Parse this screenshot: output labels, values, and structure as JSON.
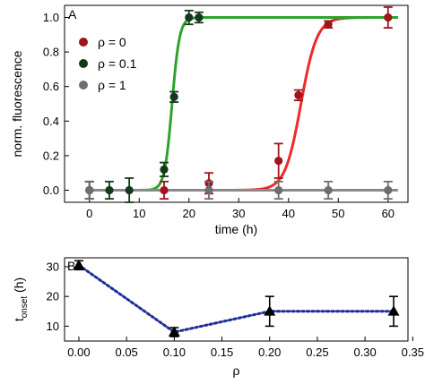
{
  "chart_data": [
    {
      "type": "scatter",
      "panel_label": "A",
      "xlabel": "time (h)",
      "ylabel": "norm. fluorescence",
      "xlim": [
        -5,
        64
      ],
      "ylim": [
        -0.07,
        1.07
      ],
      "xticks": [
        "0",
        "10",
        "20",
        "30",
        "40",
        "50",
        "60"
      ],
      "xtick_values": [
        0,
        10,
        20,
        30,
        40,
        50,
        60
      ],
      "yticks": [
        "0.0",
        "0.2",
        "0.4",
        "0.6",
        "0.8",
        "1.0"
      ],
      "ytick_values": [
        0.0,
        0.2,
        0.4,
        0.6,
        0.8,
        1.0
      ],
      "legend_position": "upper-left",
      "series": [
        {
          "name": "ρ = 0",
          "color": "#a0141c",
          "fit_color": "#ee2a2a",
          "fit_midpoint": 42.5,
          "fit_width": 1.6,
          "x": [
            0,
            15,
            24,
            38,
            42,
            48,
            60
          ],
          "y": [
            0.0,
            0.0,
            0.04,
            0.17,
            0.55,
            0.96,
            1.0
          ],
          "err": [
            0.05,
            0.05,
            0.06,
            0.1,
            0.03,
            0.02,
            0.06
          ]
        },
        {
          "name": "ρ = 0.1",
          "color": "#14391a",
          "fit_color": "#2ea32e",
          "fit_midpoint": 16.6,
          "fit_width": 0.75,
          "x": [
            0,
            4,
            8,
            15,
            17,
            20,
            22
          ],
          "y": [
            0.0,
            0.0,
            0.0,
            0.12,
            0.54,
            1.0,
            1.0
          ],
          "err": [
            0.05,
            0.05,
            0.07,
            0.04,
            0.03,
            0.04,
            0.03
          ]
        },
        {
          "name": "ρ = 1",
          "color": "#6e6e6e",
          "fit_color": "#8a8a8a",
          "fit_flat": 0.0,
          "x": [
            0,
            24,
            38,
            48,
            60
          ],
          "y": [
            0.0,
            0.0,
            0.0,
            0.0,
            0.0
          ],
          "err": [
            0.05,
            0.05,
            0.05,
            0.05,
            0.05
          ]
        }
      ]
    },
    {
      "type": "line",
      "panel_label": "B",
      "xlabel": "ρ",
      "ylabel_main": "t",
      "ylabel_sub": "onset",
      "ylabel_unit": " (h)",
      "xlim": [
        -0.015,
        0.345
      ],
      "ylim": [
        5,
        33
      ],
      "xticks": [
        "0.00",
        "0.05",
        "0.10",
        "0.15",
        "0.20",
        "0.25",
        "0.30",
        "0.35"
      ],
      "xtick_values": [
        0.0,
        0.05,
        0.1,
        0.15,
        0.2,
        0.25,
        0.3,
        0.35
      ],
      "yticks": [
        "10",
        "20",
        "30"
      ],
      "ytick_values": [
        10,
        20,
        30
      ],
      "marker": "triangle",
      "line_style": "dotted",
      "series": [
        {
          "color": "#1f2f9a",
          "marker_color": "#000000",
          "x": [
            0.0,
            0.1,
            0.2,
            0.33
          ],
          "y": [
            30.5,
            8.0,
            15.0,
            15.0
          ],
          "err": [
            1.5,
            1.5,
            5.0,
            5.0
          ]
        }
      ]
    }
  ]
}
